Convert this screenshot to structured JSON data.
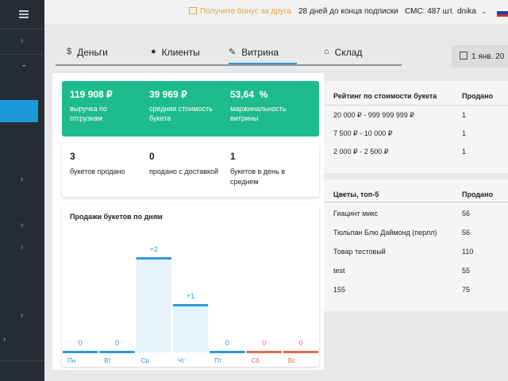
{
  "topbar": {
    "bonus_label": "Получите бонус за друга",
    "days_label": "28 дней до конца подписки",
    "sms_label": "СМС: 487 шт.",
    "user_name": "dnika",
    "flag_colors": [
      "#ffffff",
      "#1c3fa8",
      "#d8282a"
    ]
  },
  "tabs": [
    {
      "icon": "$",
      "label": "Деньги",
      "active": false
    },
    {
      "icon": "●",
      "label": "Клиенты",
      "active": false
    },
    {
      "icon": "✎",
      "label": "Витрина",
      "active": true
    },
    {
      "icon": "⌂",
      "label": "Склад",
      "active": false
    }
  ],
  "date_filter": {
    "label": "1 янв. 20"
  },
  "summary": [
    {
      "value": "119 908 ₽",
      "label": "выручка по отгрузкам"
    },
    {
      "value": "39 969 ₽",
      "label": "средняя стоимость букета"
    },
    {
      "value": "53,64  %",
      "label": "маржинальность витрины"
    }
  ],
  "stats": [
    {
      "value": "3",
      "label": "букетов продано"
    },
    {
      "value": "0",
      "label": "продано с доставкой"
    },
    {
      "value": "1",
      "label": "букетов в день в среднем"
    }
  ],
  "chart_data": {
    "type": "bar",
    "title": "Продажи букетов по дням",
    "categories": [
      "Пн",
      "Вт",
      "Ср",
      "Чт",
      "Пт",
      "Сб",
      "Вс"
    ],
    "values": [
      0,
      0,
      2,
      1,
      0,
      0,
      0
    ],
    "data_labels": [
      "0",
      "0",
      "+2",
      "+1",
      "0",
      "0",
      "0"
    ],
    "weekend_indices": [
      5,
      6
    ],
    "colors": {
      "bar": "#2e9bd6",
      "weekend": "#e26b53",
      "fill": "#e6f3fb"
    },
    "ylim": [
      0,
      2
    ]
  },
  "price_rating": {
    "title": "Рейтинг по стоимости букета",
    "sold_header": "Продано",
    "rows": [
      {
        "range": "20 000 ₽ - 999 999 999 ₽",
        "sold": "1"
      },
      {
        "range": "7 500 ₽ - 10 000 ₽",
        "sold": "1"
      },
      {
        "range": "2 000 ₽ - 2 500 ₽",
        "sold": "1"
      }
    ]
  },
  "top_flowers": {
    "title": "Цветы, топ-5",
    "sold_header": "Продано",
    "rows": [
      {
        "name": "Гиацинт микс",
        "sold": "56"
      },
      {
        "name": "Тюльпан Блю Даймонд (перлл)",
        "sold": "56"
      },
      {
        "name": "Товар тестовый",
        "sold": "110"
      },
      {
        "name": "test",
        "sold": "55"
      },
      {
        "name": "155",
        "sold": "75"
      }
    ]
  }
}
